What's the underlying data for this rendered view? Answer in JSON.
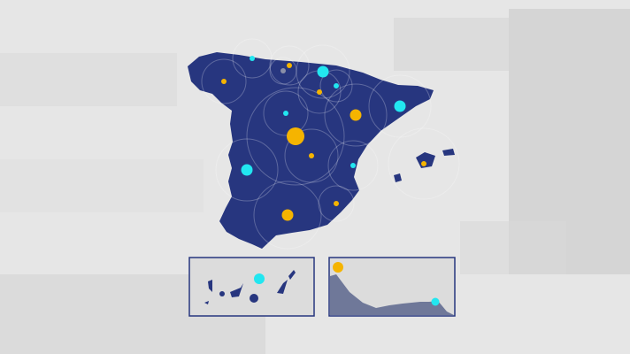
{
  "colors": {
    "background": "#e4e4e4",
    "land": "#27367f",
    "marker_yellow": "#f5b400",
    "marker_cyan": "#22e6f0",
    "marker_gray": "#8a8fa8",
    "inset_border": "#27367f",
    "relief": "#6f7899"
  },
  "markers": [
    {
      "color": "yellow",
      "size": "large"
    },
    {
      "color": "yellow",
      "size": "medium"
    },
    {
      "color": "yellow",
      "size": "medium"
    },
    {
      "color": "yellow",
      "size": "small"
    },
    {
      "color": "yellow",
      "size": "small"
    },
    {
      "color": "yellow",
      "size": "small"
    },
    {
      "color": "yellow",
      "size": "small"
    },
    {
      "color": "yellow",
      "size": "small"
    },
    {
      "color": "yellow",
      "size": "small"
    },
    {
      "color": "cyan",
      "size": "medium"
    },
    {
      "color": "cyan",
      "size": "medium"
    },
    {
      "color": "cyan",
      "size": "medium"
    },
    {
      "color": "cyan",
      "size": "small"
    },
    {
      "color": "cyan",
      "size": "small"
    },
    {
      "color": "cyan",
      "size": "small"
    },
    {
      "color": "cyan",
      "size": "small"
    },
    {
      "color": "gray",
      "size": "small"
    }
  ],
  "insets": [
    {
      "region": "canary-islands",
      "markers": [
        {
          "color": "cyan",
          "size": "medium"
        }
      ]
    },
    {
      "region": "coastline",
      "markers": [
        {
          "color": "yellow",
          "size": "medium"
        },
        {
          "color": "cyan",
          "size": "small"
        }
      ]
    }
  ]
}
